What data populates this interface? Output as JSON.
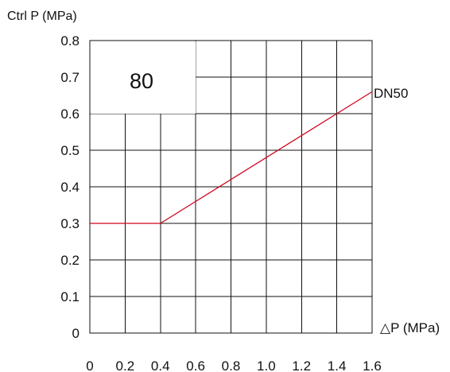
{
  "chart_data": {
    "type": "line",
    "title": "",
    "xlabel": "△P (MPa)",
    "ylabel": "Ctrl P (MPa)",
    "xlim": [
      0,
      1.6
    ],
    "ylim": [
      0,
      0.8
    ],
    "x_ticks": [
      "0",
      "0.2",
      "0.4",
      "0.6",
      "0.8",
      "1.0",
      "1.2",
      "1.4",
      "1.6"
    ],
    "y_ticks": [
      "0",
      "0.1",
      "0.2",
      "0.3",
      "0.4",
      "0.5",
      "0.6",
      "0.7",
      "0.8"
    ],
    "grid": true,
    "inset_label": "80",
    "series": [
      {
        "name": "DN50",
        "color": "#d0021b",
        "x": [
          0,
          0.4,
          1.6
        ],
        "y": [
          0.3,
          0.3,
          0.66
        ]
      }
    ]
  }
}
